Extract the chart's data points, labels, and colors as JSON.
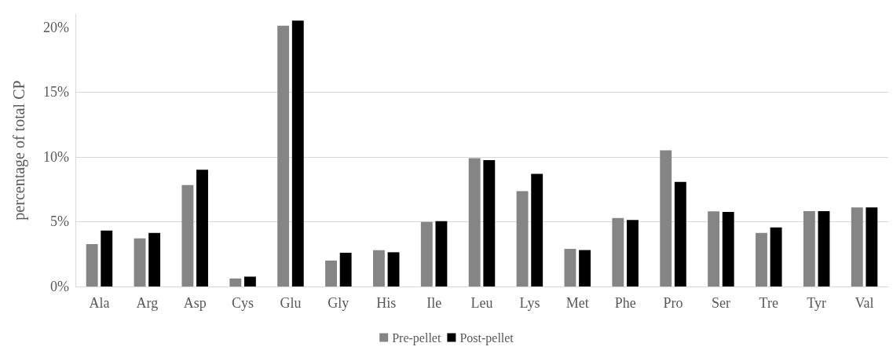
{
  "chart_data": {
    "type": "bar",
    "ylabel": "percentage of total CP",
    "categories": [
      "Ala",
      "Arg",
      "Asp",
      "Cys",
      "Glu",
      "Gly",
      "His",
      "Ile",
      "Leu",
      "Lys",
      "Met",
      "Phe",
      "Pro",
      "Ser",
      "Tre",
      "Tyr",
      "Val"
    ],
    "series": [
      {
        "name": "Pre-pellet",
        "color": "#858585",
        "values": [
          3.27,
          3.71,
          7.82,
          0.62,
          20.1,
          2.0,
          2.8,
          4.98,
          9.9,
          7.36,
          2.9,
          5.28,
          10.5,
          5.79,
          4.13,
          5.81,
          6.1
        ]
      },
      {
        "name": "Post-pellet",
        "color": "#000000",
        "values": [
          4.31,
          4.13,
          9.0,
          0.76,
          20.5,
          2.6,
          2.64,
          5.04,
          9.75,
          8.69,
          2.81,
          5.13,
          8.07,
          5.75,
          4.55,
          5.81,
          6.1
        ]
      }
    ],
    "ylim": [
      0,
      21
    ],
    "yticks": [
      {
        "value": 0,
        "label": "0%"
      },
      {
        "value": 5,
        "label": "5%"
      },
      {
        "value": 10,
        "label": "10%"
      },
      {
        "value": 15,
        "label": "15%"
      },
      {
        "value": 20,
        "label": "20%"
      }
    ],
    "grid": "y",
    "legend": "bottom"
  }
}
